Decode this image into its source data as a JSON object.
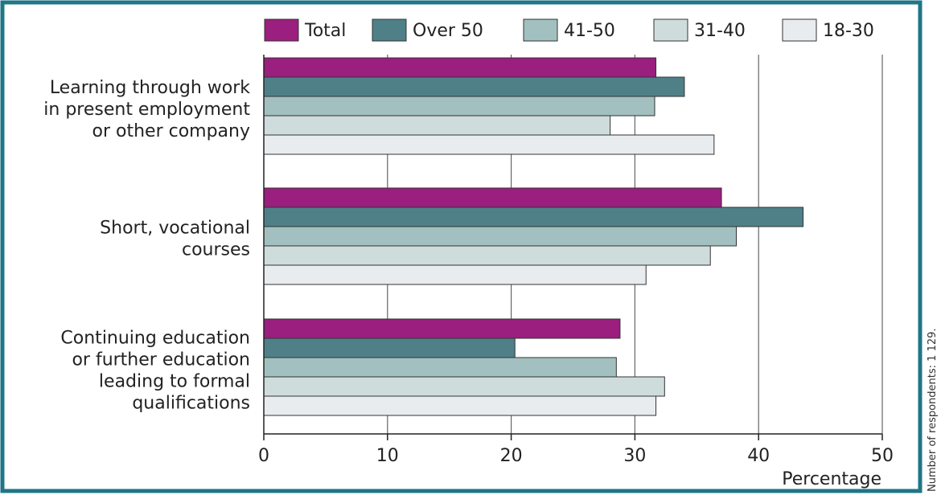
{
  "chart_data": {
    "type": "bar",
    "orientation": "horizontal",
    "categories": [
      "Learning through work in present employment or other company",
      "Short, vocational courses",
      "Continuing education or further education leading to formal qualifications"
    ],
    "category_lines": [
      [
        "Learning through work",
        "in present employment",
        "or other company"
      ],
      [
        "Short, vocational",
        "courses"
      ],
      [
        "Continuing education",
        "or further education",
        "leading to formal",
        "qualifications"
      ]
    ],
    "series": [
      {
        "name": "Total",
        "values": [
          31.7,
          37.0,
          28.8
        ],
        "color": "#9b1f7e"
      },
      {
        "name": "Over 50",
        "values": [
          34.0,
          43.6,
          20.3
        ],
        "color": "#4f8088"
      },
      {
        "name": "41-50",
        "values": [
          31.6,
          38.2,
          28.5
        ],
        "color": "#a2c0bf"
      },
      {
        "name": "31-40",
        "values": [
          28.0,
          36.1,
          32.4
        ],
        "color": "#cfdcdc"
      },
      {
        "name": "18-30",
        "values": [
          36.4,
          30.9,
          31.7
        ],
        "color": "#e9ecee"
      }
    ],
    "xlim": [
      0,
      50
    ],
    "xticks": [
      0,
      10,
      20,
      30,
      40,
      50
    ],
    "xlabel": "Percentage",
    "legend_position": "top",
    "grid": "vertical",
    "side_note": "Number of respondents: 1 129.",
    "colors": {
      "frame": "#1f7687",
      "grid": "#666666",
      "bar_outline": "#333333"
    }
  }
}
